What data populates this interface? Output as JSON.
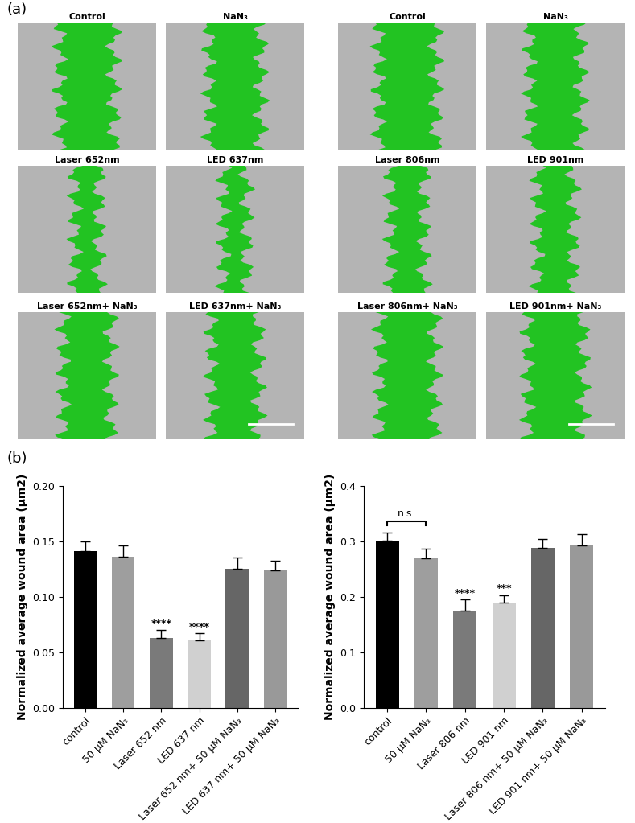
{
  "panel_labels": [
    "(a)",
    "(b)"
  ],
  "images": [
    {
      "titles": [
        "Control",
        "NaN₃",
        "Laser 652nm",
        "LED 637nm",
        "Laser 652nm+ NaN₃",
        "LED 637nm+ NaN₃"
      ]
    },
    {
      "titles": [
        "Control",
        "NaN₃",
        "Laser 806nm",
        "LED 901nm",
        "Laser 806nm+ NaN₃",
        "LED 901nm+ NaN₃"
      ]
    }
  ],
  "chart_data": [
    {
      "type": "bar",
      "y_label": "Normalized average wound area (μm2)",
      "categories": [
        "control",
        "50 μM NaN₃",
        "Laser 652 nm",
        "LED 637 nm",
        "Laser 652 nm+ 50 μM NaN₃",
        "LED 637 nm+ 50 μM NaN₃"
      ],
      "values": [
        0.141,
        0.136,
        0.063,
        0.061,
        0.125,
        0.124
      ],
      "errors": [
        0.009,
        0.01,
        0.007,
        0.006,
        0.01,
        0.008
      ],
      "colors": [
        "#000000",
        "#9e9e9e",
        "#7a7a7a",
        "#d0d0d0",
        "#666666",
        "#999999"
      ],
      "ylim": [
        0,
        0.2
      ],
      "yticks": [
        {
          "value": 0,
          "label": "0.00"
        },
        {
          "value": 0.05,
          "label": "0.05"
        },
        {
          "value": 0.1,
          "label": "0.10"
        },
        {
          "value": 0.15,
          "label": "0.15"
        },
        {
          "value": 0.2,
          "label": "0.20"
        }
      ],
      "annotations": [
        {
          "category": "Laser 652 nm",
          "text": "****"
        },
        {
          "category": "LED 637 nm",
          "text": "****"
        }
      ]
    },
    {
      "type": "bar",
      "y_label": "Normalized average wound area (μm2)",
      "categories": [
        "control",
        "50 μM NaN₃",
        "Laser 806 nm",
        "LED 901 nm",
        "Laser 806 nm+ 50 μM NaN₃",
        "LED 901 nm+ 50 μM NaN₃"
      ],
      "values": [
        0.301,
        0.269,
        0.175,
        0.189,
        0.288,
        0.292
      ],
      "errors": [
        0.015,
        0.018,
        0.02,
        0.014,
        0.016,
        0.021
      ],
      "colors": [
        "#000000",
        "#9e9e9e",
        "#7a7a7a",
        "#d0d0d0",
        "#666666",
        "#999999"
      ],
      "ylim": [
        0,
        0.4
      ],
      "yticks": [
        {
          "value": 0,
          "label": "0.0"
        },
        {
          "value": 0.1,
          "label": "0.1"
        },
        {
          "value": 0.2,
          "label": "0.2"
        },
        {
          "value": 0.3,
          "label": "0.3"
        },
        {
          "value": 0.4,
          "label": "0.4"
        }
      ],
      "annotations": [
        {
          "category": "Laser 806 nm",
          "text": "****"
        },
        {
          "category": "LED 901 nm",
          "text": "***"
        }
      ],
      "brackets": [
        {
          "from": "control",
          "to": "50 μM NaN₃",
          "text": "n.s."
        }
      ]
    }
  ]
}
